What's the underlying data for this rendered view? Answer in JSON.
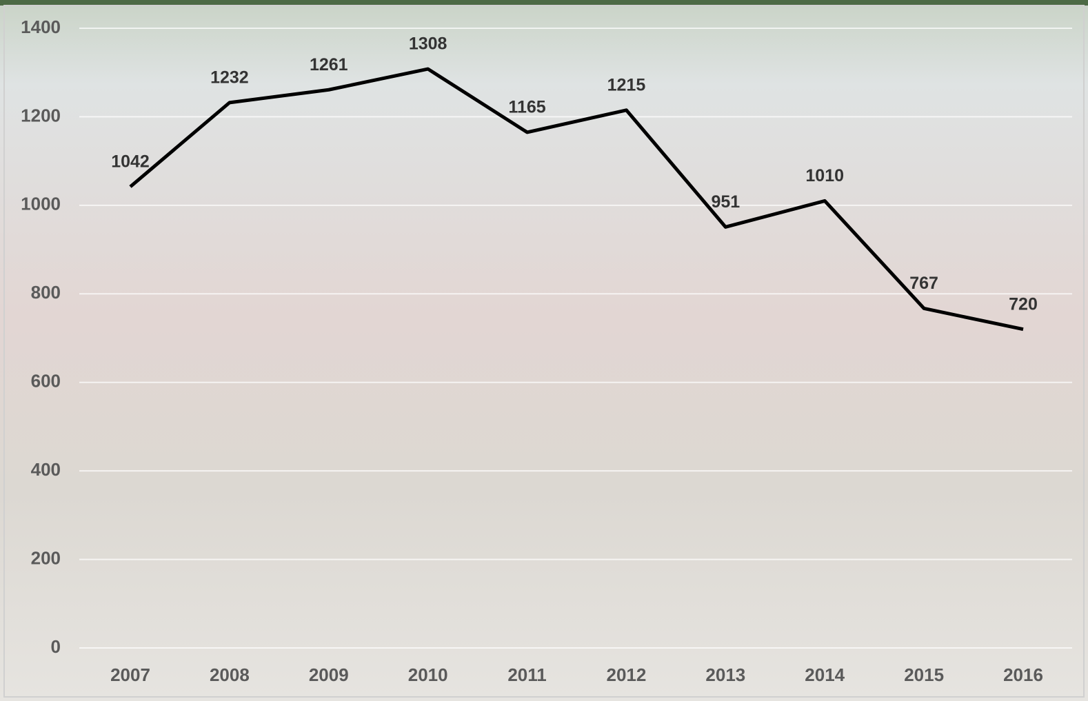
{
  "chart_data": {
    "type": "line",
    "categories": [
      "2007",
      "2008",
      "2009",
      "2010",
      "2011",
      "2012",
      "2013",
      "2014",
      "2015",
      "2016"
    ],
    "values": [
      1042,
      1232,
      1261,
      1308,
      1165,
      1215,
      951,
      1010,
      767,
      720
    ],
    "color": "#000000",
    "ylim": [
      0,
      1400
    ],
    "yticks": [
      0,
      200,
      400,
      600,
      800,
      1000,
      1200,
      1400
    ],
    "grid": true
  }
}
